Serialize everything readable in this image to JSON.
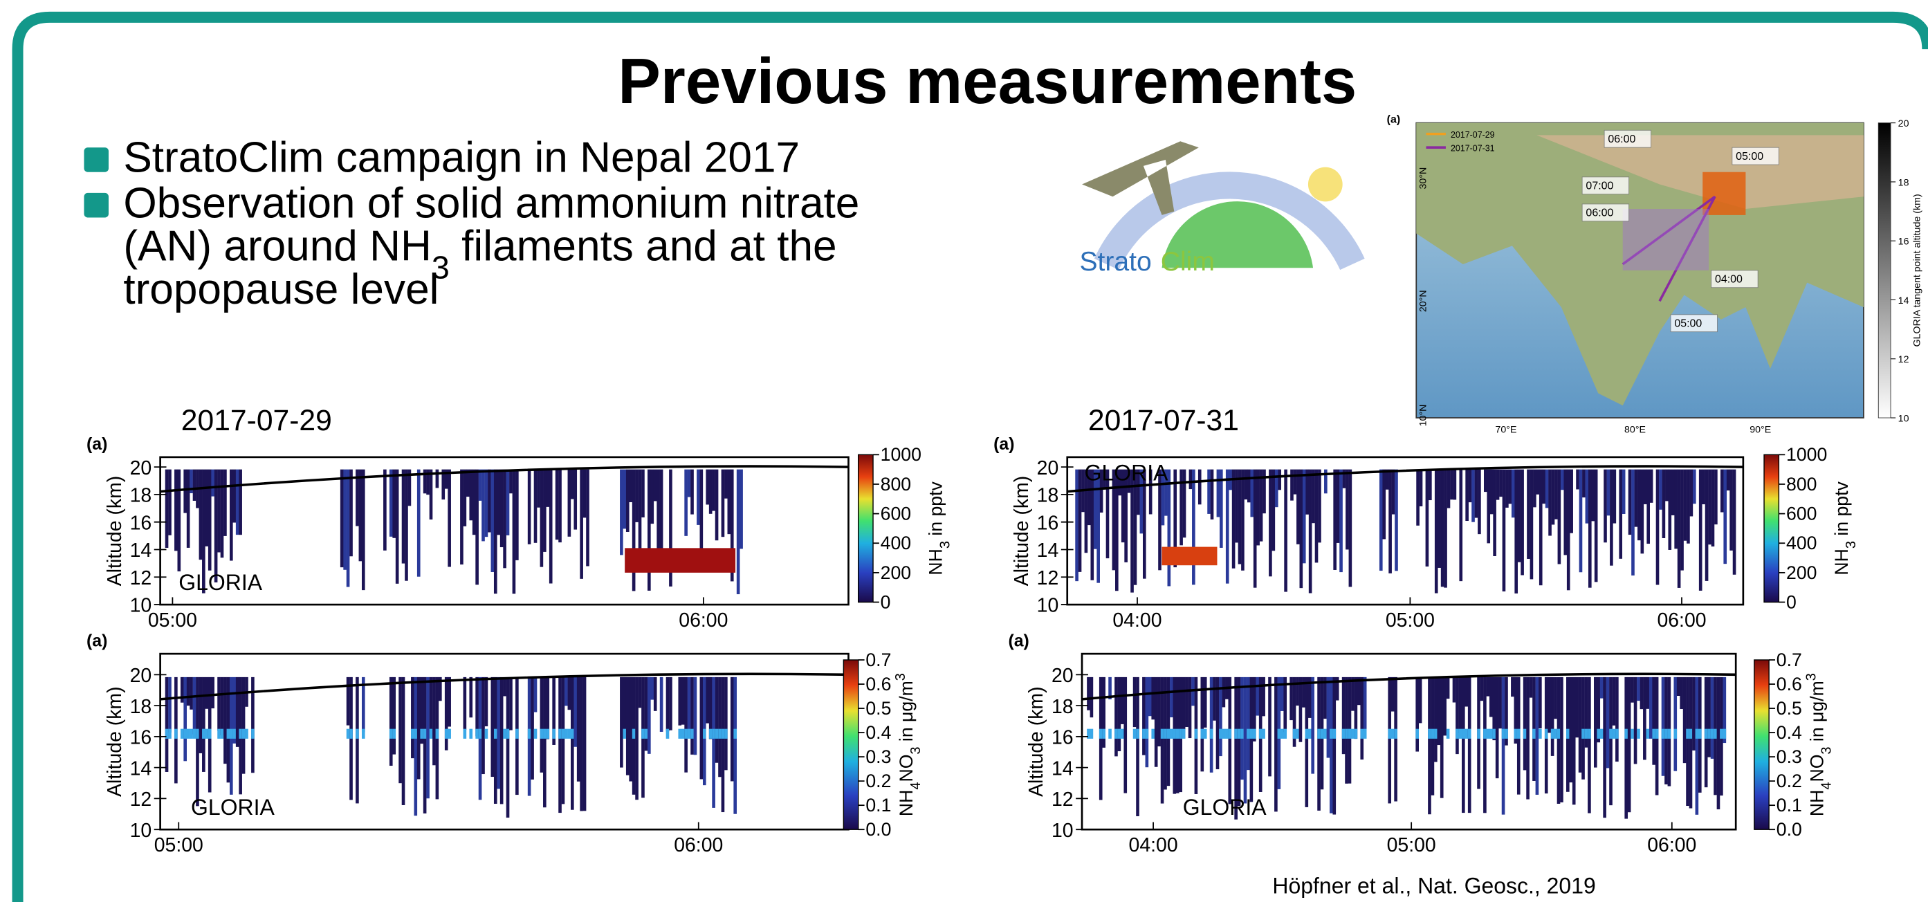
{
  "header": {
    "title": "Previous measurements"
  },
  "bullets": [
    [
      [
        {
          "text": "StratoClim campaign in Nepal 2017"
        }
      ]
    ],
    [
      [
        {
          "text": "Observation of solid ammonium nitrate"
        }
      ],
      [
        {
          "text": "(AN) around NH"
        },
        {
          "text": "3",
          "sub": true
        },
        {
          "text": " filaments and at the"
        }
      ],
      [
        {
          "text": "tropopause level"
        }
      ]
    ]
  ],
  "logo": {
    "parts": [
      "Strato",
      "Clim"
    ]
  },
  "map": {
    "label": "(a)",
    "legend": [
      {
        "name": "2017-07-29",
        "color": "#f0a020"
      },
      {
        "name": "2017-07-31",
        "color": "#8a2aa0"
      }
    ],
    "times": [
      "06:00",
      "05:00",
      "07:00",
      "06:00",
      "04:00",
      "05:00"
    ],
    "lat_ticks": [
      "30°N",
      "20°N",
      "10°N"
    ],
    "lon_ticks": [
      "70°E",
      "80°E",
      "90°E"
    ],
    "colorbar_ticks": [
      20,
      18,
      16,
      14,
      12,
      10
    ],
    "colorbar_label": "GLORIA tangent point altitude (km)"
  },
  "panels": [
    {
      "date": "2017-07-29",
      "plots": [
        {
          "label": "(a)",
          "ylabel": "Altitude (km)",
          "yticks": [
            10,
            12,
            14,
            16,
            18,
            20
          ],
          "xticks": [
            "05:00",
            "06:00"
          ],
          "instrument": "GLORIA",
          "cbar_ticks": [
            0,
            200,
            400,
            600,
            800,
            1000
          ],
          "cbar_label": [
            {
              "text": "NH"
            },
            {
              "text": "3",
              "sub": true
            },
            {
              "text": " in pptv"
            }
          ]
        },
        {
          "label": "(a)",
          "ylabel": "Altitude (km)",
          "yticks": [
            10,
            12,
            14,
            16,
            18,
            20
          ],
          "xticks": [
            "05:00",
            "06:00"
          ],
          "instrument": "GLORIA",
          "cbar_ticks": [
            {
              "value": 0,
              "label": "0.0"
            },
            0.1,
            0.2,
            0.3,
            0.4,
            0.5,
            0.6,
            0.7
          ],
          "cbar_label": [
            {
              "text": "NH"
            },
            {
              "text": "4",
              "sub": true
            },
            {
              "text": "NO"
            },
            {
              "text": "3",
              "sub": true
            },
            {
              "text": " in μg/m"
            },
            {
              "text": "3",
              "sup": true
            }
          ]
        }
      ]
    },
    {
      "date": "2017-07-31",
      "plots": [
        {
          "label": "(a)",
          "ylabel": "Altitude (km)",
          "yticks": [
            10,
            12,
            14,
            16,
            18,
            20
          ],
          "xticks": [
            "04:00",
            "05:00",
            "06:00"
          ],
          "instrument": "GLORIA",
          "cbar_ticks": [
            0,
            200,
            400,
            600,
            800,
            1000
          ],
          "cbar_label": [
            {
              "text": "NH"
            },
            {
              "text": "3",
              "sub": true
            },
            {
              "text": " in pptv"
            }
          ]
        },
        {
          "label": "(a)",
          "ylabel": "Altitude (km)",
          "yticks": [
            10,
            12,
            14,
            16,
            18,
            20
          ],
          "xticks": [
            "04:00",
            "05:00",
            "06:00"
          ],
          "instrument": "GLORIA",
          "cbar_ticks": [
            {
              "value": 0,
              "label": "0.0"
            },
            0.1,
            0.2,
            0.3,
            0.4,
            0.5,
            0.6,
            0.7
          ],
          "cbar_label": [
            {
              "text": "NH"
            },
            {
              "text": "4",
              "sub": true
            },
            {
              "text": "NO"
            },
            {
              "text": "3",
              "sub": true
            },
            {
              "text": " in μg/m"
            },
            {
              "text": "3",
              "sup": true
            }
          ]
        }
      ]
    }
  ],
  "citation": "Höpfner et al., Nat. Geosc., 2019"
}
